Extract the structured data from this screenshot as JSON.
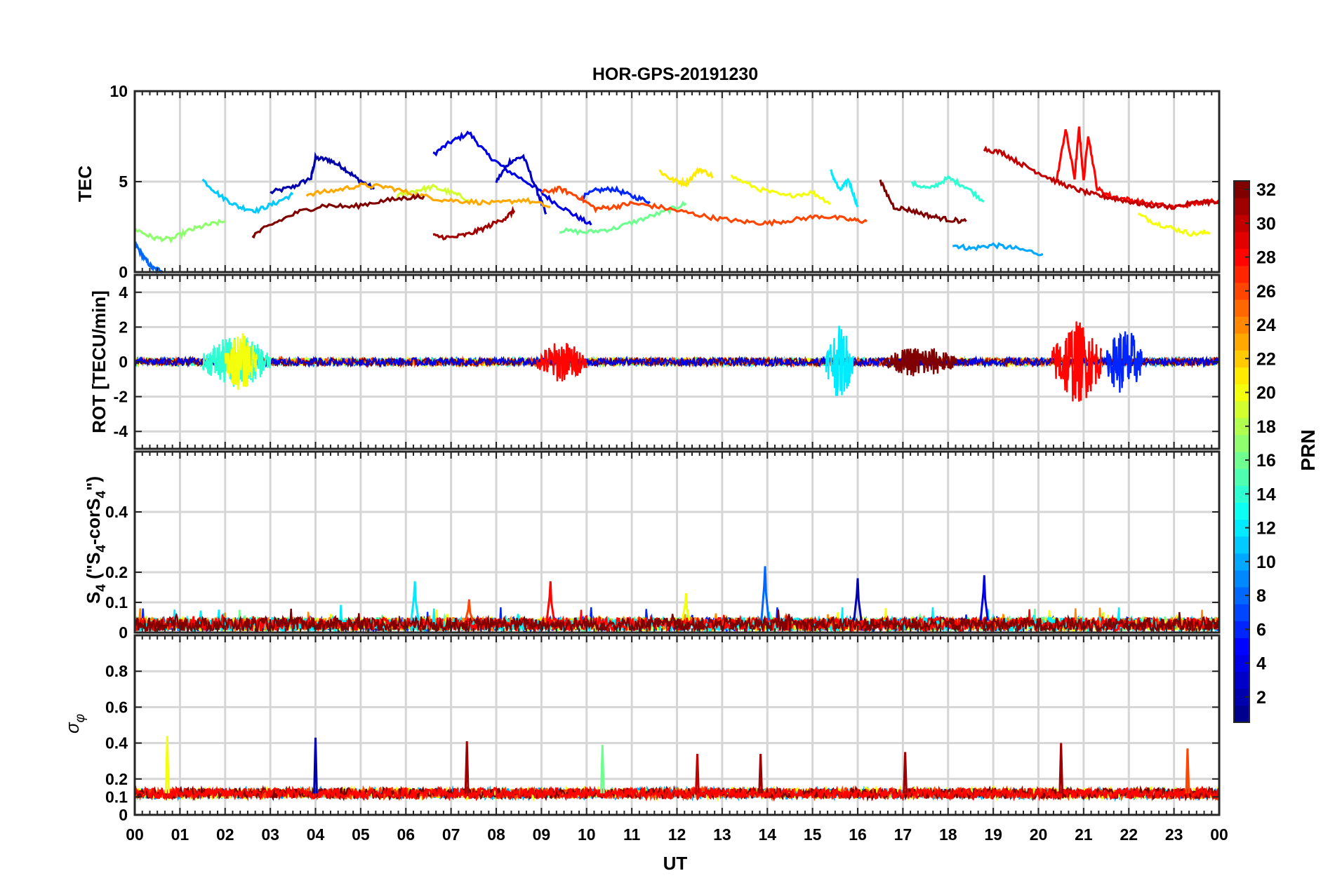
{
  "chart_data": {
    "type": "line",
    "title": "HOR-GPS-20191230",
    "xlabel": "UT",
    "x_ticks": [
      "00",
      "01",
      "02",
      "03",
      "04",
      "05",
      "06",
      "07",
      "08",
      "09",
      "10",
      "11",
      "12",
      "13",
      "14",
      "15",
      "16",
      "17",
      "18",
      "19",
      "20",
      "21",
      "22",
      "23",
      "00"
    ],
    "xlim": [
      0,
      24
    ],
    "colorbar": {
      "label": "PRN",
      "range": [
        1,
        32
      ],
      "ticks": [
        "2",
        "4",
        "6",
        "8",
        "10",
        "12",
        "14",
        "16",
        "18",
        "20",
        "22",
        "24",
        "26",
        "28",
        "30",
        "32"
      ],
      "colormap": [
        "#00008f",
        "#0000ff",
        "#0080ff",
        "#00ffff",
        "#80ff80",
        "#ffff00",
        "#ff8000",
        "#ff0000",
        "#800000"
      ]
    },
    "panels": [
      {
        "id": "tec",
        "ylabel": "TEC",
        "ylim": [
          0,
          10
        ],
        "y_ticks": [
          "0",
          "5",
          "10"
        ],
        "series": [
          {
            "prn": 2,
            "x": [
              3.0,
              3.5,
              3.9,
              4.0,
              4.3,
              4.6,
              4.9,
              5.3
            ],
            "y": [
              4.4,
              4.7,
              5.2,
              6.3,
              6.2,
              5.8,
              5.2,
              4.6
            ]
          },
          {
            "prn": 4,
            "x": [
              6.6,
              7.0,
              7.4,
              7.8,
              8.2,
              8.8,
              9.2,
              9.7,
              10.1
            ],
            "y": [
              6.5,
              7.2,
              7.7,
              6.5,
              5.7,
              4.8,
              4.0,
              3.2,
              2.6
            ]
          },
          {
            "prn": 3,
            "x": [
              8.0,
              8.3,
              8.6,
              8.9,
              9.1
            ],
            "y": [
              5.0,
              6.1,
              6.4,
              4.5,
              3.2
            ]
          },
          {
            "prn": 8,
            "x": [
              0.0,
              0.2,
              0.4,
              0.6
            ],
            "y": [
              1.6,
              0.8,
              0.2,
              0.1
            ]
          },
          {
            "prn": 10,
            "x": [
              18.1,
              18.5,
              19.0,
              19.5,
              20.1
            ],
            "y": [
              1.5,
              1.3,
              1.5,
              1.3,
              1.0
            ]
          },
          {
            "prn": 6,
            "x": [
              9.8,
              10.2,
              10.6,
              11.0,
              11.4
            ],
            "y": [
              4.0,
              4.5,
              4.6,
              4.2,
              3.9
            ]
          },
          {
            "prn": 11,
            "x": [
              1.5,
              1.9,
              2.3,
              2.7,
              3.1,
              3.5
            ],
            "y": [
              5.1,
              4.2,
              3.6,
              3.4,
              3.8,
              4.3
            ]
          },
          {
            "prn": 12,
            "x": [
              15.4,
              15.6,
              15.8,
              16.0
            ],
            "y": [
              5.6,
              4.5,
              5.1,
              3.6
            ]
          },
          {
            "prn": 14,
            "x": [
              17.2,
              17.6,
              18.0,
              18.4,
              18.8
            ],
            "y": [
              4.9,
              4.6,
              5.2,
              4.7,
              3.9
            ]
          },
          {
            "prn": 16,
            "x": [
              9.4,
              10.0,
              10.6,
              11.2,
              11.8,
              12.2
            ],
            "y": [
              2.3,
              2.2,
              2.4,
              2.9,
              3.4,
              3.8
            ]
          },
          {
            "prn": 17,
            "x": [
              0.0,
              0.4,
              0.8,
              1.2,
              1.6,
              2.0
            ],
            "y": [
              2.4,
              1.9,
              1.8,
              2.3,
              2.6,
              2.8
            ]
          },
          {
            "prn": 19,
            "x": [
              5.8,
              6.2,
              6.6,
              7.0,
              7.4
            ],
            "y": [
              4.2,
              4.5,
              4.7,
              4.4,
              4.0
            ]
          },
          {
            "prn": 20,
            "x": [
              13.2,
              13.8,
              14.4,
              15.0,
              15.4
            ],
            "y": [
              5.3,
              4.6,
              4.2,
              4.4,
              3.8
            ]
          },
          {
            "prn": 21,
            "x": [
              11.6,
              11.9,
              12.2,
              12.5,
              12.8
            ],
            "y": [
              5.6,
              5.1,
              4.9,
              5.7,
              5.3
            ]
          },
          {
            "prn": 20,
            "x": [
              22.2,
              22.6,
              23.0,
              23.4,
              23.8
            ],
            "y": [
              3.2,
              2.7,
              2.4,
              2.1,
              2.2
            ]
          },
          {
            "prn": 23,
            "x": [
              3.8,
              4.4,
              5.0,
              5.6,
              6.2,
              6.8,
              7.4,
              8.0,
              8.6,
              9.2
            ],
            "y": [
              4.3,
              4.5,
              4.8,
              4.7,
              4.3,
              4.0,
              3.9,
              3.8,
              4.0,
              3.6
            ]
          },
          {
            "prn": 26,
            "x": [
              9.0,
              9.4,
              9.8,
              10.2,
              10.6,
              11.0,
              11.6,
              12.2,
              12.8,
              13.4,
              14.0,
              14.6,
              15.2,
              15.8,
              16.2
            ],
            "y": [
              4.4,
              4.6,
              4.2,
              3.5,
              3.6,
              3.8,
              3.6,
              3.3,
              3.0,
              2.8,
              2.7,
              2.9,
              3.1,
              2.9,
              2.8
            ]
          },
          {
            "prn": 28,
            "x": [
              20.4,
              20.6,
              20.8,
              20.9,
              21.0,
              21.1,
              21.3,
              21.6,
              22.0,
              22.4,
              23.0,
              23.5,
              24.0
            ],
            "y": [
              5.0,
              7.9,
              5.2,
              8.0,
              5.0,
              7.6,
              4.6,
              4.2,
              4.0,
              3.8,
              3.6,
              3.8,
              4.0
            ]
          },
          {
            "prn": 30,
            "x": [
              18.8,
              19.2,
              19.6,
              20.0,
              20.4,
              20.8,
              21.2,
              21.6,
              22.0,
              22.4,
              23.0,
              23.6,
              24.0
            ],
            "y": [
              6.8,
              6.6,
              6.0,
              5.5,
              5.0,
              4.6,
              4.3,
              4.1,
              3.9,
              3.7,
              3.6,
              3.9,
              3.8
            ]
          },
          {
            "prn": 31,
            "x": [
              6.6,
              7.0,
              7.4,
              7.8,
              8.2,
              8.4
            ],
            "y": [
              2.0,
              1.9,
              2.1,
              2.5,
              3.0,
              3.4
            ]
          },
          {
            "prn": 32,
            "x": [
              2.6,
              3.0,
              3.6,
              4.2,
              4.8,
              5.4,
              6.0,
              6.4
            ],
            "y": [
              2.0,
              2.6,
              3.3,
              3.7,
              3.6,
              3.9,
              4.1,
              4.2
            ]
          },
          {
            "prn": 32,
            "x": [
              16.5,
              16.8,
              17.2,
              17.6,
              18.0,
              18.4
            ],
            "y": [
              5.0,
              3.6,
              3.4,
              3.1,
              2.9,
              2.8
            ]
          }
        ]
      },
      {
        "id": "rot",
        "ylabel": "ROT [TECU/min]",
        "ylim": [
          -5,
          5
        ],
        "y_ticks": [
          "-4",
          "-2",
          "0",
          "2",
          "4"
        ],
        "bursts": [
          {
            "prn": 14,
            "x0": 1.5,
            "x1": 3.0,
            "amp": 1.5
          },
          {
            "prn": 20,
            "x0": 2.0,
            "x1": 2.7,
            "amp": 1.7
          },
          {
            "prn": 28,
            "x0": 8.9,
            "x1": 10.0,
            "amp": 1.2
          },
          {
            "prn": 12,
            "x0": 15.3,
            "x1": 15.9,
            "amp": 2.1
          },
          {
            "prn": 32,
            "x0": 16.6,
            "x1": 18.2,
            "amp": 0.9
          },
          {
            "prn": 28,
            "x0": 20.3,
            "x1": 21.4,
            "amp": 2.4
          },
          {
            "prn": 6,
            "x0": 21.5,
            "x1": 22.3,
            "amp": 2.0
          }
        ]
      },
      {
        "id": "s4",
        "ylabel": "S4 (\"S4-corS4\")",
        "ylim": [
          0,
          0.6
        ],
        "y_ticks": [
          "0",
          "0.1",
          "0.2",
          "0.4"
        ],
        "spikes": [
          {
            "prn": 12,
            "x": 6.2,
            "y": 0.17
          },
          {
            "prn": 28,
            "x": 9.2,
            "y": 0.17
          },
          {
            "prn": 8,
            "x": 13.95,
            "y": 0.22
          },
          {
            "prn": 2,
            "x": 16.0,
            "y": 0.18
          },
          {
            "prn": 4,
            "x": 18.8,
            "y": 0.19
          },
          {
            "prn": 26,
            "x": 7.4,
            "y": 0.11
          },
          {
            "prn": 20,
            "x": 12.2,
            "y": 0.13
          }
        ]
      },
      {
        "id": "sigma_phi",
        "ylabel": "σ φ",
        "ylim": [
          0,
          1.0
        ],
        "y_ticks": [
          "0",
          "0.1",
          "0.2",
          "0.4",
          "0.6",
          "0.8"
        ],
        "spikes": [
          {
            "prn": 20,
            "x": 0.72,
            "y": 0.44
          },
          {
            "prn": 2,
            "x": 4.0,
            "y": 0.43
          },
          {
            "prn": 31,
            "x": 7.35,
            "y": 0.41
          },
          {
            "prn": 16,
            "x": 10.35,
            "y": 0.39
          },
          {
            "prn": 30,
            "x": 12.45,
            "y": 0.34
          },
          {
            "prn": 31,
            "x": 13.85,
            "y": 0.34
          },
          {
            "prn": 31,
            "x": 17.05,
            "y": 0.35
          },
          {
            "prn": 31,
            "x": 20.5,
            "y": 0.4
          },
          {
            "prn": 26,
            "x": 23.3,
            "y": 0.37
          }
        ]
      }
    ]
  }
}
